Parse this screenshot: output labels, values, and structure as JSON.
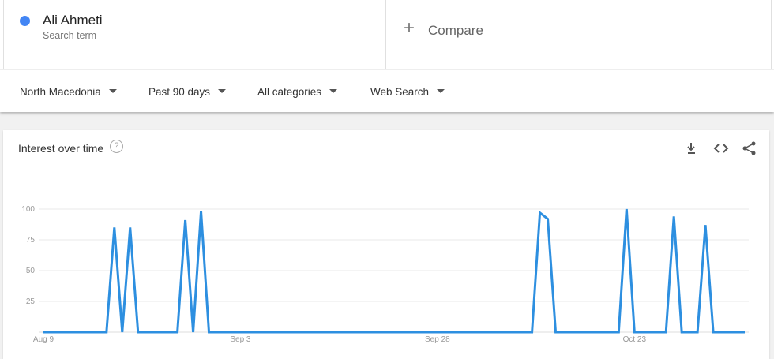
{
  "header": {
    "term": "Ali Ahmeti",
    "term_sub": "Search term",
    "compare": "Compare"
  },
  "filters": [
    "North Macedonia",
    "Past 90 days",
    "All categories",
    "Web Search"
  ],
  "card_title": "Interest over time",
  "chart_data": {
    "type": "line",
    "categories": [
      "Aug 9",
      null,
      null,
      null,
      null,
      null,
      null,
      null,
      null,
      null,
      null,
      null,
      null,
      null,
      null,
      null,
      null,
      null,
      null,
      null,
      null,
      null,
      null,
      null,
      null,
      "Sep 3",
      null,
      null,
      null,
      null,
      null,
      null,
      null,
      null,
      null,
      null,
      null,
      null,
      null,
      null,
      null,
      null,
      null,
      null,
      null,
      null,
      null,
      null,
      null,
      null,
      "Sep 28",
      null,
      null,
      null,
      null,
      null,
      null,
      null,
      null,
      null,
      null,
      null,
      null,
      null,
      null,
      null,
      null,
      null,
      null,
      null,
      null,
      null,
      null,
      null,
      null,
      "Oct 23",
      null,
      null,
      null,
      null,
      null,
      null,
      null,
      null,
      null,
      null,
      null,
      null,
      null,
      null
    ],
    "series": [
      {
        "name": "Ali Ahmeti",
        "color": "#2d8fe0",
        "values": [
          0,
          0,
          0,
          0,
          0,
          0,
          0,
          0,
          0,
          85,
          0,
          85,
          0,
          0,
          0,
          0,
          0,
          0,
          91,
          0,
          98,
          0,
          0,
          0,
          0,
          0,
          0,
          0,
          0,
          0,
          0,
          0,
          0,
          0,
          0,
          0,
          0,
          0,
          0,
          0,
          0,
          0,
          0,
          0,
          0,
          0,
          0,
          0,
          0,
          0,
          0,
          0,
          0,
          0,
          0,
          0,
          0,
          0,
          0,
          0,
          0,
          0,
          0,
          97,
          92,
          0,
          0,
          0,
          0,
          0,
          0,
          0,
          0,
          0,
          100,
          0,
          0,
          0,
          0,
          0,
          94,
          0,
          0,
          0,
          87,
          0,
          0,
          0,
          0,
          0
        ]
      }
    ],
    "ylim": [
      0,
      100
    ],
    "yticks": [
      25,
      50,
      75,
      100
    ],
    "grid": true
  }
}
